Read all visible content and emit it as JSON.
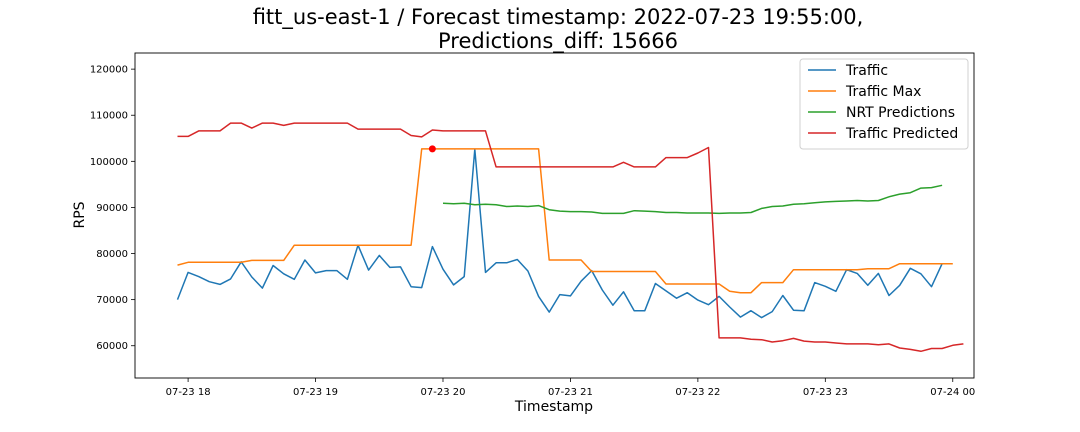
{
  "chart_data": {
    "type": "line",
    "title_line1": "fitt_us-east-1 / Forecast timestamp: 2022-07-23 19:55:00,",
    "title_line2": "Predictions_diff: 15666",
    "xlabel": "Timestamp",
    "ylabel": "RPS",
    "xlim": [
      "2022-07-23 17:35",
      "2022-07-24 00:10"
    ],
    "ylim": [
      53000,
      123500
    ],
    "x_ticks": [
      {
        "t": "2022-07-23 18:00",
        "label": "07-23 18"
      },
      {
        "t": "2022-07-23 19:00",
        "label": "07-23 19"
      },
      {
        "t": "2022-07-23 20:00",
        "label": "07-23 20"
      },
      {
        "t": "2022-07-23 21:00",
        "label": "07-23 21"
      },
      {
        "t": "2022-07-23 22:00",
        "label": "07-23 22"
      },
      {
        "t": "2022-07-23 23:00",
        "label": "07-23 23"
      },
      {
        "t": "2022-07-24 00:00",
        "label": "07-24 00"
      }
    ],
    "y_ticks": [
      {
        "v": 60000,
        "label": "60000"
      },
      {
        "v": 70000,
        "label": "70000"
      },
      {
        "v": 80000,
        "label": "80000"
      },
      {
        "v": 90000,
        "label": "90000"
      },
      {
        "v": 100000,
        "label": "100000"
      },
      {
        "v": 110000,
        "label": "110000"
      },
      {
        "v": 120000,
        "label": "120000"
      }
    ],
    "legend_position": "top-right",
    "grid": false,
    "series": [
      {
        "name": "Traffic",
        "color": "#1f77b4",
        "start": "2022-07-23 17:55",
        "step_minutes": 5,
        "values": [
          70000,
          75900,
          75000,
          73900,
          73300,
          74500,
          78200,
          74900,
          72500,
          77400,
          75600,
          74400,
          78600,
          75800,
          76300,
          76300,
          74400,
          81800,
          76400,
          79600,
          77000,
          77100,
          72800,
          72600,
          81500,
          76600,
          73200,
          75000,
          102600,
          75900,
          78000,
          78000,
          78700,
          76200,
          70700,
          67300,
          71100,
          70800,
          74000,
          76300,
          72100,
          68800,
          71700,
          67600,
          67600,
          73500,
          71900,
          70300,
          71500,
          69900,
          68900,
          70700,
          68400,
          66200,
          67600,
          66100,
          67400,
          70900,
          67700,
          67600,
          73700,
          72900,
          71800,
          76500,
          75700,
          73100,
          75700,
          70900,
          73100,
          76800,
          75600,
          72800,
          77800
        ]
      },
      {
        "name": "Traffic Max",
        "color": "#ff7f0e",
        "start": "2022-07-23 17:55",
        "step_minutes": 5,
        "values": [
          77500,
          78100,
          78100,
          78100,
          78100,
          78100,
          78100,
          78500,
          78500,
          78500,
          78500,
          81800,
          81800,
          81800,
          81800,
          81800,
          81800,
          81800,
          81800,
          81800,
          81800,
          81800,
          81800,
          102700,
          102700,
          102700,
          102700,
          102700,
          102700,
          102700,
          102700,
          102700,
          102700,
          102700,
          102700,
          78600,
          78600,
          78600,
          78600,
          76100,
          76100,
          76100,
          76100,
          76100,
          76100,
          76100,
          73400,
          73400,
          73400,
          73400,
          73400,
          73400,
          71800,
          71500,
          71500,
          73700,
          73700,
          73700,
          76500,
          76500,
          76500,
          76500,
          76500,
          76500,
          76500,
          76700,
          76700,
          76700,
          77800,
          77800,
          77800,
          77800,
          77800,
          77800
        ]
      },
      {
        "name": "NRT Predictions",
        "color": "#2ca02c",
        "start": "2022-07-23 20:00",
        "step_minutes": 5,
        "values": [
          90900,
          90800,
          90900,
          90600,
          90700,
          90600,
          90200,
          90300,
          90200,
          90400,
          89500,
          89200,
          89100,
          89100,
          89000,
          88700,
          88700,
          88700,
          89300,
          89200,
          89100,
          88900,
          88900,
          88800,
          88800,
          88800,
          88700,
          88800,
          88800,
          88900,
          89800,
          90200,
          90300,
          90700,
          90800,
          91000,
          91200,
          91300,
          91400,
          91500,
          91400,
          91500,
          92300,
          92900,
          93200,
          94200,
          94300,
          94800
        ]
      },
      {
        "name": "Traffic Predicted",
        "color": "#d62728",
        "start": "2022-07-23 17:55",
        "step_minutes": 5,
        "values": [
          105400,
          105400,
          106600,
          106600,
          106600,
          108300,
          108300,
          107200,
          108300,
          108300,
          107800,
          108300,
          108300,
          108300,
          108300,
          108300,
          108300,
          107000,
          107000,
          107000,
          107000,
          107000,
          105600,
          105300,
          106800,
          106600,
          106600,
          106600,
          106600,
          106600,
          98800,
          98800,
          98800,
          98800,
          98800,
          98800,
          98800,
          98800,
          98800,
          98800,
          98800,
          98800,
          99800,
          98800,
          98800,
          98800,
          100800,
          100800,
          100800,
          101800,
          103000,
          61700,
          61700,
          61700,
          61400,
          61300,
          60800,
          61100,
          61600,
          61000,
          60800,
          60800,
          60600,
          60400,
          60400,
          60400,
          60200,
          60400,
          59500,
          59200,
          58800,
          59400,
          59400,
          60100,
          60400
        ]
      }
    ],
    "markers": [
      {
        "t": "2022-07-23 19:55",
        "value": 102700,
        "color": "#ff0000"
      }
    ]
  }
}
